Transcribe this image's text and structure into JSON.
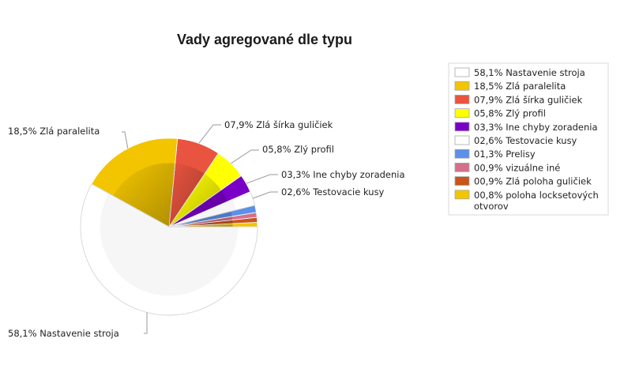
{
  "chart_data": {
    "type": "pie",
    "title": "Vady agregované dle typu",
    "slices": [
      {
        "label": "58,1% Nastavenie stroja",
        "value": 58.1,
        "color": "#ffffff",
        "callout": "58,1% Nastavenie stroja"
      },
      {
        "label": "18,5% Zlá paralelita",
        "value": 18.5,
        "color": "#f2c500",
        "callout": "18,5% Zlá paralelita"
      },
      {
        "label": "07,9% Zlá šírka guličiek",
        "value": 7.9,
        "color": "#e8543f",
        "callout": "07,9% Zlá šírka guličiek"
      },
      {
        "label": "05,8% Zlý profil",
        "value": 5.8,
        "color": "#ffff00",
        "callout": "05,8% Zlý profil"
      },
      {
        "label": "03,3% Ine chyby zoradenia",
        "value": 3.3,
        "color": "#7a00c8",
        "callout": "03,3% Ine chyby zoradenia"
      },
      {
        "label": "02,6% Testovacie kusy",
        "value": 2.6,
        "color": "#ffffff",
        "callout": "02,6% Testovacie kusy"
      },
      {
        "label": "01,3% Prelisy",
        "value": 1.3,
        "color": "#5b8fe8",
        "callout": ""
      },
      {
        "label": "00,9% vizuálne iné",
        "value": 0.9,
        "color": "#d4708c",
        "callout": ""
      },
      {
        "label": "00,9% Zlá poloha guličiek",
        "value": 0.9,
        "color": "#c8551a",
        "callout": ""
      },
      {
        "label": "00,8% poloha locksetových otvorov",
        "value": 0.8,
        "color": "#f2c500",
        "callout": ""
      }
    ],
    "legend_position": "right"
  }
}
